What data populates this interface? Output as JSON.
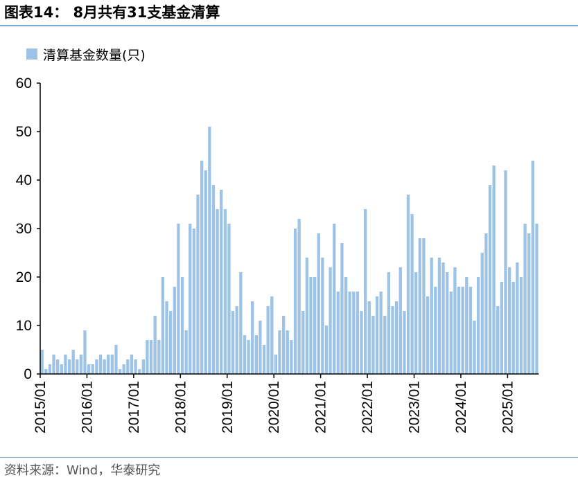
{
  "header": {
    "title": "图表14：  8月共有31支基金清算"
  },
  "footer": {
    "source": "资料来源：Wind，华泰研究"
  },
  "colors": {
    "bar": "#9dc3e6",
    "rule": "#7aa6cf",
    "axis": "#000000"
  },
  "chart_data": {
    "type": "bar",
    "title": "",
    "xlabel": "",
    "ylabel": "",
    "ylim": [
      0,
      60
    ],
    "yticks": [
      0,
      10,
      20,
      30,
      40,
      50,
      60
    ],
    "grid": false,
    "legend_position": "top-left",
    "xtick_labels": [
      "2015/01",
      "2016/01",
      "2017/01",
      "2018/01",
      "2019/01",
      "2020/01",
      "2021/01",
      "2022/01",
      "2023/01",
      "2024/01",
      "2025/01"
    ],
    "start_month": "2015/01",
    "series": [
      {
        "name": "清算基金数量(只)",
        "values": [
          5,
          1,
          2,
          4,
          3,
          2,
          4,
          3,
          5,
          3,
          4,
          9,
          2,
          2,
          3,
          4,
          3,
          4,
          4,
          6,
          1,
          2,
          3,
          4,
          3,
          1,
          3,
          7,
          7,
          12,
          7,
          20,
          15,
          13,
          18,
          31,
          20,
          9,
          31,
          30,
          37,
          44,
          42,
          51,
          39,
          34,
          38,
          34,
          31,
          13,
          14,
          21,
          8,
          7,
          15,
          8,
          11,
          6,
          14,
          16,
          4,
          9,
          12,
          9,
          7,
          30,
          32,
          13,
          24,
          20,
          20,
          29,
          24,
          10,
          22,
          31,
          17,
          27,
          20,
          17,
          17,
          17,
          13,
          34,
          15,
          12,
          16,
          17,
          12,
          21,
          14,
          15,
          22,
          13,
          37,
          33,
          21,
          28,
          28,
          16,
          24,
          18,
          24,
          23,
          21,
          17,
          22,
          18,
          18,
          20,
          18,
          11,
          20,
          25,
          29,
          39,
          43,
          14,
          19,
          42,
          22,
          19,
          23,
          20,
          31,
          29,
          44,
          31
        ]
      }
    ]
  }
}
